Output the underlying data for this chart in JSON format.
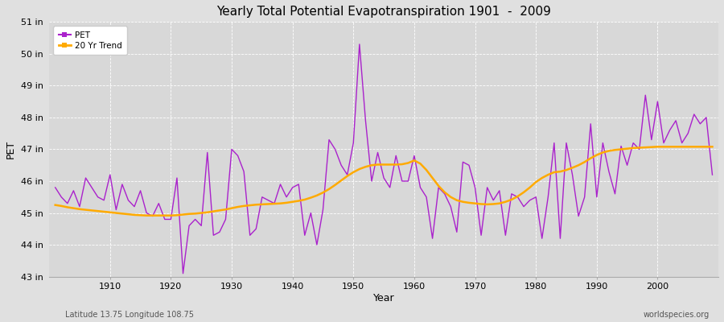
{
  "title": "Yearly Total Potential Evapotranspiration 1901  -  2009",
  "xlabel": "Year",
  "ylabel": "PET",
  "subtitle_left": "Latitude 13.75 Longitude 108.75",
  "subtitle_right": "worldspecies.org",
  "pet_color": "#aa22cc",
  "trend_color": "#ffaa00",
  "background_color": "#e0e0e0",
  "plot_background": "#d8d8d8",
  "grid_color": "#ffffff",
  "ylim": [
    43,
    51
  ],
  "yticks": [
    43,
    44,
    45,
    46,
    47,
    48,
    49,
    50,
    51
  ],
  "ytick_labels": [
    "43 in",
    "44 in",
    "45 in",
    "46 in",
    "47 in",
    "48 in",
    "49 in",
    "50 in",
    "51 in"
  ],
  "years": [
    1901,
    1902,
    1903,
    1904,
    1905,
    1906,
    1907,
    1908,
    1909,
    1910,
    1911,
    1912,
    1913,
    1914,
    1915,
    1916,
    1917,
    1918,
    1919,
    1920,
    1921,
    1922,
    1923,
    1924,
    1925,
    1926,
    1927,
    1928,
    1929,
    1930,
    1931,
    1932,
    1933,
    1934,
    1935,
    1936,
    1937,
    1938,
    1939,
    1940,
    1941,
    1942,
    1943,
    1944,
    1945,
    1946,
    1947,
    1948,
    1949,
    1950,
    1951,
    1952,
    1953,
    1954,
    1955,
    1956,
    1957,
    1958,
    1959,
    1960,
    1961,
    1962,
    1963,
    1964,
    1965,
    1966,
    1967,
    1968,
    1969,
    1970,
    1971,
    1972,
    1973,
    1974,
    1975,
    1976,
    1977,
    1978,
    1979,
    1980,
    1981,
    1982,
    1983,
    1984,
    1985,
    1986,
    1987,
    1988,
    1989,
    1990,
    1991,
    1992,
    1993,
    1994,
    1995,
    1996,
    1997,
    1998,
    1999,
    2000,
    2001,
    2002,
    2003,
    2004,
    2005,
    2006,
    2007,
    2008,
    2009
  ],
  "pet_values": [
    45.8,
    45.5,
    45.3,
    45.7,
    45.2,
    46.1,
    45.8,
    45.5,
    45.4,
    46.2,
    45.1,
    45.9,
    45.4,
    45.2,
    45.7,
    45.0,
    44.9,
    45.3,
    44.8,
    44.8,
    46.1,
    43.1,
    44.6,
    44.8,
    44.6,
    46.9,
    44.3,
    44.4,
    44.8,
    47.0,
    46.8,
    46.3,
    44.3,
    44.5,
    45.5,
    45.4,
    45.3,
    45.9,
    45.5,
    45.8,
    45.9,
    44.3,
    45.0,
    44.0,
    45.1,
    47.3,
    47.0,
    46.5,
    46.2,
    47.2,
    50.3,
    47.9,
    46.0,
    46.9,
    46.1,
    45.8,
    46.8,
    46.0,
    46.0,
    46.8,
    45.8,
    45.5,
    44.2,
    45.8,
    45.6,
    45.2,
    44.4,
    46.6,
    46.5,
    45.8,
    44.3,
    45.8,
    45.4,
    45.7,
    44.3,
    45.6,
    45.5,
    45.2,
    45.4,
    45.5,
    44.2,
    45.5,
    47.2,
    44.2,
    47.2,
    46.2,
    44.9,
    45.5,
    47.8,
    45.5,
    47.2,
    46.3,
    45.6,
    47.1,
    46.5,
    47.2,
    47.0,
    48.7,
    47.3,
    48.5,
    47.2,
    47.6,
    47.9,
    47.2,
    47.5,
    48.1,
    47.8,
    48.0,
    46.2
  ],
  "trend_values": [
    45.25,
    45.22,
    45.18,
    45.15,
    45.12,
    45.1,
    45.08,
    45.06,
    45.04,
    45.02,
    45.0,
    44.98,
    44.96,
    44.94,
    44.93,
    44.92,
    44.92,
    44.92,
    44.92,
    44.92,
    44.93,
    44.95,
    44.97,
    44.98,
    45.0,
    45.02,
    45.05,
    45.08,
    45.11,
    45.15,
    45.19,
    45.22,
    45.24,
    45.26,
    45.27,
    45.28,
    45.29,
    45.3,
    45.32,
    45.35,
    45.38,
    45.42,
    45.48,
    45.55,
    45.64,
    45.75,
    45.88,
    46.02,
    46.16,
    46.28,
    46.38,
    46.45,
    46.5,
    46.52,
    46.52,
    46.52,
    46.52,
    46.53,
    46.57,
    46.65,
    46.55,
    46.35,
    46.1,
    45.85,
    45.65,
    45.5,
    45.4,
    45.35,
    45.32,
    45.3,
    45.28,
    45.27,
    45.28,
    45.3,
    45.35,
    45.42,
    45.52,
    45.65,
    45.8,
    45.97,
    46.1,
    46.2,
    46.28,
    46.3,
    46.35,
    46.42,
    46.5,
    46.6,
    46.72,
    46.82,
    46.9,
    46.95,
    46.98,
    47.0,
    47.02,
    47.04,
    47.05,
    47.06,
    47.07,
    47.08,
    47.08,
    47.08,
    47.08,
    47.08,
    47.08,
    47.08,
    47.08,
    47.08,
    47.08
  ]
}
